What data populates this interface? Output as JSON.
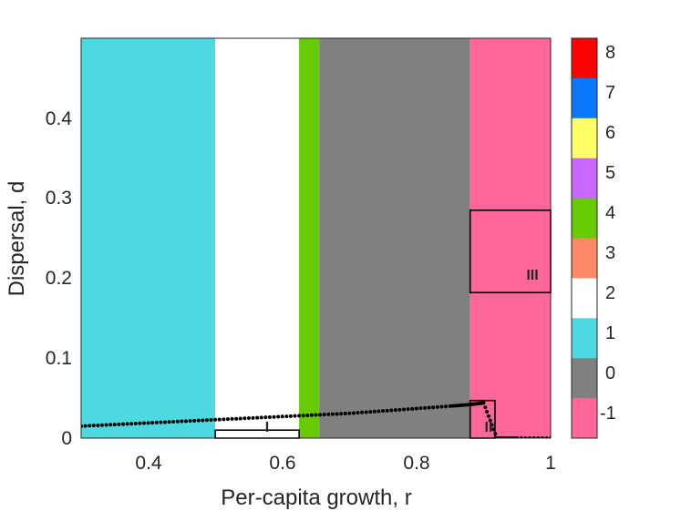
{
  "chart_data": {
    "type": "heatmap",
    "title": "",
    "xlabel": "Per-capita growth, r",
    "ylabel": "Dispersal, d",
    "xlim": [
      0.3,
      1.0
    ],
    "ylim": [
      0,
      0.5
    ],
    "x_ticks": [
      0.4,
      0.6,
      0.8,
      1.0
    ],
    "x_tick_labels": [
      "0.4",
      "0.6",
      "0.8",
      "1"
    ],
    "y_ticks": [
      0,
      0.1,
      0.2,
      0.3,
      0.4
    ],
    "y_tick_labels": [
      "0",
      "0.1",
      "0.2",
      "0.3",
      "0.4"
    ],
    "colorbar": {
      "labels": [
        "8",
        "7",
        "6",
        "5",
        "4",
        "3",
        "2",
        "1",
        "0",
        "-1"
      ],
      "colors": [
        "#ff0000",
        "#0a78ff",
        "#ffff66",
        "#c966ff",
        "#66cc00",
        "#ff8866",
        "#ffffff",
        "#4dd9e0",
        "#808080",
        "#ff6699"
      ]
    },
    "regions": [
      {
        "label": "1",
        "color": "#4dd9e0",
        "x_range": [
          0.3,
          0.5
        ]
      },
      {
        "label": "2",
        "color": "#ffffff",
        "x_range": [
          0.5,
          0.625
        ]
      },
      {
        "label": "4",
        "color": "#66cc00",
        "x_range": [
          0.625,
          0.655
        ]
      },
      {
        "label": "0",
        "color": "#808080",
        "x_range": [
          0.655,
          0.88
        ]
      },
      {
        "label": "-1",
        "color": "#ff6699",
        "x_range": [
          0.88,
          1.0
        ]
      }
    ],
    "boxes": [
      {
        "label": "I",
        "x_range": [
          0.5,
          0.625
        ],
        "y_range": [
          0,
          0.01
        ]
      },
      {
        "label": "II",
        "x_range": [
          0.88,
          0.917
        ],
        "y_range": [
          0,
          0.047
        ]
      },
      {
        "label": "III",
        "x_range": [
          0.88,
          1.0
        ],
        "y_range": [
          0.182,
          0.285
        ]
      }
    ],
    "boundary_series": {
      "style": "dotted",
      "color": "#000000",
      "x": [
        0.3,
        0.35,
        0.4,
        0.45,
        0.5,
        0.55,
        0.6,
        0.65,
        0.7,
        0.75,
        0.8,
        0.85,
        0.88,
        0.9,
        0.92,
        0.95,
        1.0
      ],
      "y": [
        0.015,
        0.017,
        0.019,
        0.021,
        0.023,
        0.025,
        0.027,
        0.029,
        0.031,
        0.034,
        0.037,
        0.04,
        0.042,
        0.044,
        0.0,
        0.0,
        0.0
      ]
    }
  }
}
